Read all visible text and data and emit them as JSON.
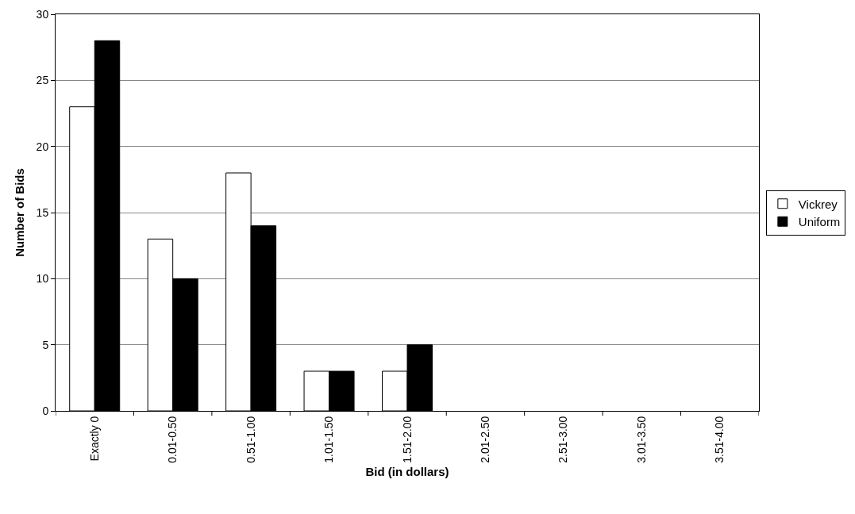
{
  "chart_data": {
    "type": "bar",
    "xlabel": "Bid (in dollars)",
    "ylabel": "Number of Bids",
    "categories": [
      "Exactly 0",
      "0.01-0.50",
      "0.51-1.00",
      "1.01-1.50",
      "1.51-2.00",
      "2.01-2.50",
      "2.51-3.00",
      "3.01-3.50",
      "3.51-4.00"
    ],
    "series": [
      {
        "name": "Vickrey",
        "color": "#ffffff",
        "values": [
          23,
          13,
          18,
          3,
          3,
          0,
          0,
          0,
          0
        ]
      },
      {
        "name": "Uniform",
        "color": "#000000",
        "values": [
          28,
          10,
          14,
          3,
          5,
          0,
          0,
          0,
          0
        ]
      }
    ],
    "ylim": [
      0,
      30
    ],
    "yticks": [
      0,
      5,
      10,
      15,
      20,
      25,
      30
    ],
    "grid": "y",
    "legend": "right"
  }
}
